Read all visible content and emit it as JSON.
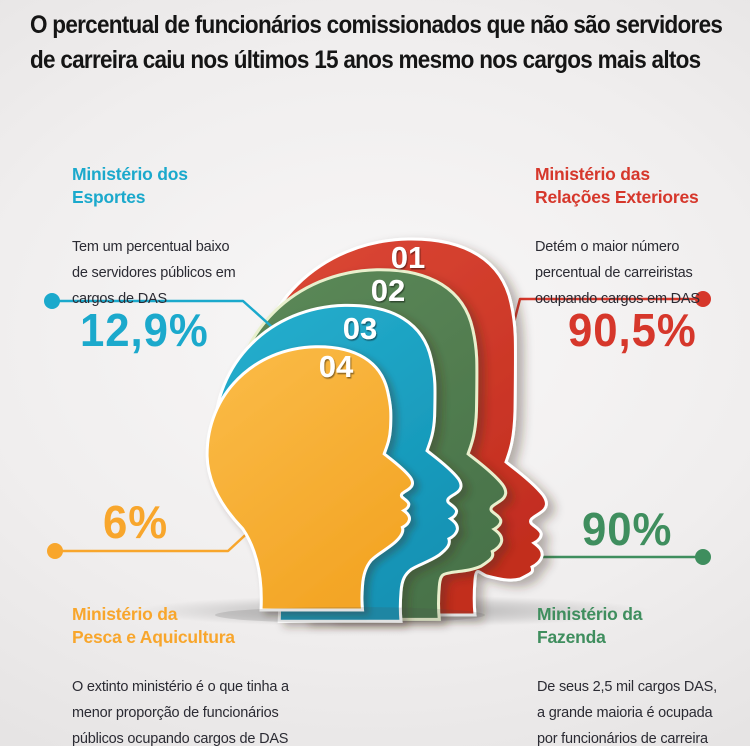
{
  "title": "O percentual de funcionários comissionados que não são servidores\nde carreira caiu nos últimos 15 anos mesmo nos cargos mais altos",
  "heads": [
    {
      "label": "01",
      "color_light": "#dd4936",
      "color_dark": "#c22d1f",
      "outline": "#ffffff"
    },
    {
      "label": "02",
      "color_light": "#5d8a58",
      "color_dark": "#49734a",
      "outline": "#e9f0cd"
    },
    {
      "label": "03",
      "color_light": "#27b0cf",
      "color_dark": "#1292b4",
      "outline": "#ffffff"
    },
    {
      "label": "04",
      "color_light": "#fbbc49",
      "color_dark": "#f3a525",
      "outline": "#ffffff"
    }
  ],
  "callouts": {
    "top_left": {
      "ministry": "Ministério dos\nEsportes",
      "description": "Tem um percentual baixo\nde servidores públicos em\ncargos de DAS",
      "value": "12,9%",
      "color": "#1ba9cc"
    },
    "top_right": {
      "ministry": "Ministério das\nRelações Exteriores",
      "description": "Detém o maior número\npercentual de carreiristas\nocupando cargos em DAS",
      "value": "90,5%",
      "color": "#d6372b"
    },
    "bottom_left": {
      "ministry": "Ministério da\nPesca e Aquicultura",
      "description": "O extinto ministério é o que tinha a\nmenor proporção de funcionários\npúblicos ocupando cargos de DAS",
      "value": "6%",
      "color": "#f8a62c"
    },
    "bottom_right": {
      "ministry": "Ministério da\nFazenda",
      "description": "De seus 2,5 mil cargos DAS,\na grande maioria é ocupada\npor funcionários de carreira",
      "value": "90%",
      "color": "#3f8e5e"
    }
  },
  "chart_data": {
    "type": "pictorial",
    "title": "O percentual de funcionários comissionados que não são servidores de carreira caiu nos últimos 15 anos mesmo nos cargos mais altos",
    "categories": [
      "Ministério das Relações Exteriores",
      "Ministério da Fazenda",
      "Ministério dos Esportes",
      "Ministério da Pesca e Aquicultura"
    ],
    "values": [
      90.5,
      90,
      12.9,
      6
    ],
    "unit": "%",
    "rank_labels": [
      "01",
      "02",
      "03",
      "04"
    ],
    "notes": [
      "Detém o maior número percentual de carreiristas ocupando cargos em DAS",
      "De seus 2,5 mil cargos DAS, a grande maioria é ocupada por funcionários de carreira",
      "Tem um percentual baixo de servidores públicos em cargos de DAS",
      "O extinto ministério é o que tinha a menor proporção de funcionários públicos ocupando cargos de DAS"
    ]
  }
}
